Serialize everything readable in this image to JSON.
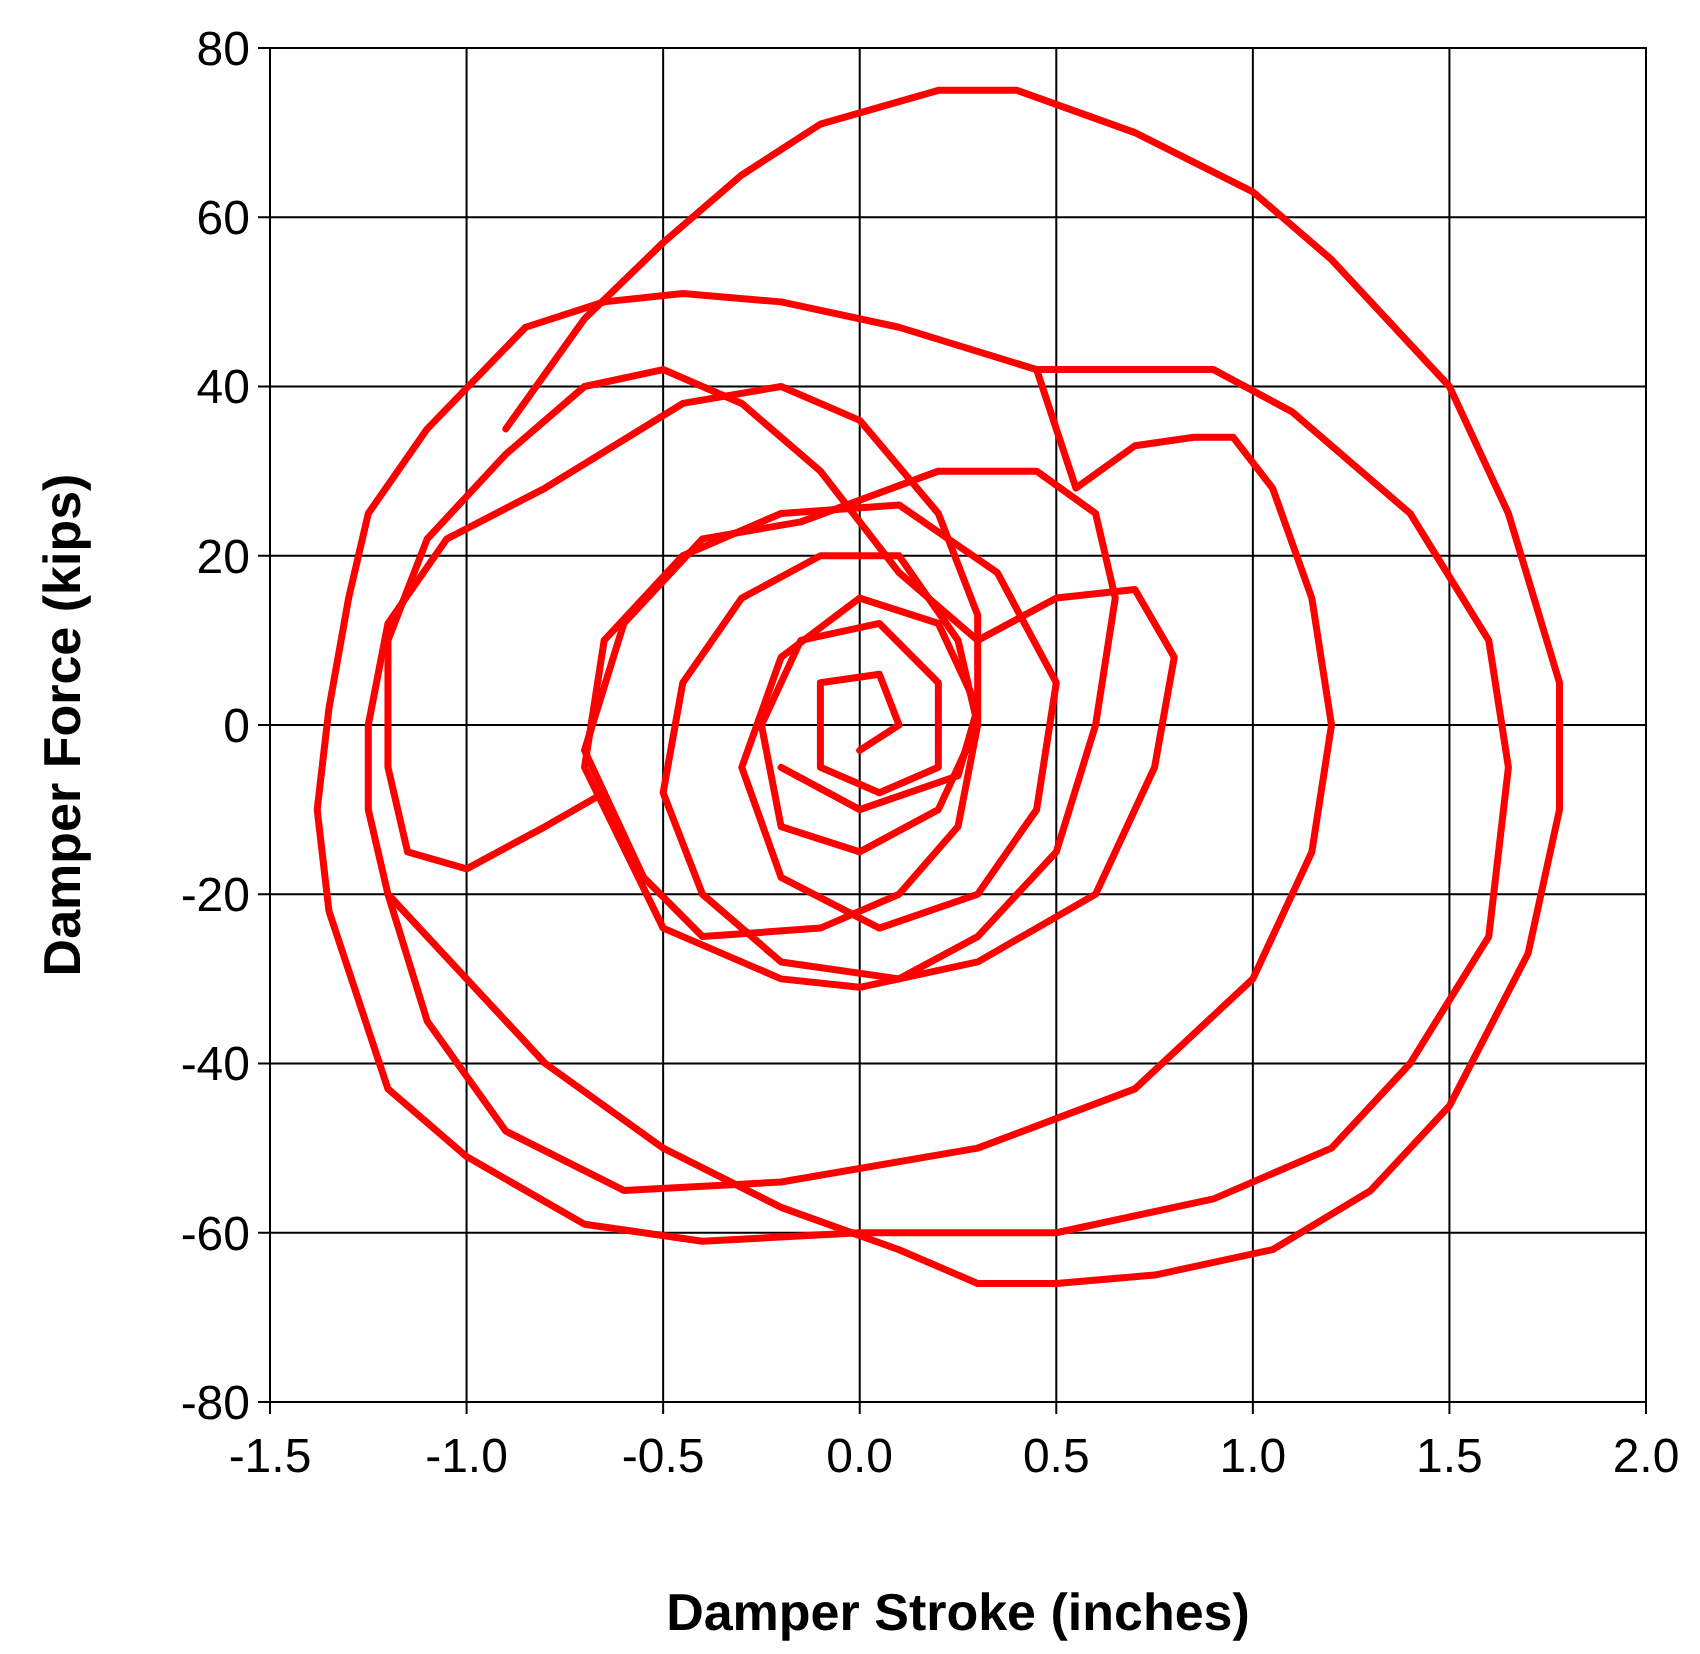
{
  "chart_data": {
    "type": "line",
    "xlabel": "Damper Stroke (inches)",
    "ylabel": "Damper Force (kips)",
    "xlim": [
      -1.5,
      2.0
    ],
    "xticks": [
      {
        "value": -1.5,
        "label": "-1.5"
      },
      {
        "value": -1,
        "label": "-1.0"
      },
      {
        "value": -0.5,
        "label": "-0.5"
      },
      {
        "value": 0,
        "label": "0.0"
      },
      {
        "value": 0.5,
        "label": "0.5"
      },
      {
        "value": 1,
        "label": "1.0"
      },
      {
        "value": 1.5,
        "label": "1.5"
      },
      {
        "value": 2,
        "label": "2.0"
      }
    ],
    "ylim": [
      -80,
      80
    ],
    "yticks": [
      -80,
      -60,
      -40,
      -20,
      0,
      20,
      40,
      60,
      80
    ],
    "grid": true,
    "marker": "none",
    "line_style": "solid",
    "series": [
      {
        "color": "#ff0000",
        "x": [
          -0.9,
          -0.7,
          -0.5,
          -0.3,
          -0.1,
          0.2,
          0.4,
          0.7,
          1.0,
          1.2,
          1.5,
          1.65,
          1.78,
          1.78,
          1.7,
          1.5,
          1.3,
          1.05,
          0.75,
          0.5,
          0.3,
          0.1,
          -0.2,
          -0.5,
          -0.8,
          -1.0,
          -1.2,
          -1.25,
          -1.25,
          -1.2,
          -1.05,
          -0.8,
          -0.45,
          -0.2,
          0.0,
          0.2,
          0.3,
          0.3,
          0.25,
          0.1,
          -0.1,
          -0.4,
          -0.55,
          -0.7,
          -0.6,
          -0.4,
          -0.15,
          0.2,
          0.45,
          0.6,
          0.65,
          0.6,
          0.5,
          0.3,
          0.1,
          -0.2,
          -0.4,
          -0.5,
          -0.45,
          -0.3,
          -0.1,
          0.1,
          0.25,
          0.3,
          0.2,
          0.0,
          -0.2,
          -0.25,
          -0.15,
          0.05,
          0.2,
          0.2,
          0.05,
          -0.1,
          -0.1,
          0.05,
          0.1,
          0.0
        ],
        "values": [
          35,
          48,
          57,
          65,
          71,
          75,
          75,
          70,
          63,
          55,
          40,
          25,
          5,
          -10,
          -27,
          -45,
          -55,
          -62,
          -65,
          -66,
          -66,
          -62,
          -57,
          -50,
          -40,
          -30,
          -20,
          -10,
          0,
          12,
          22,
          28,
          38,
          40,
          36,
          25,
          13,
          0,
          -12,
          -20,
          -24,
          -25,
          -18,
          -3,
          12,
          22,
          24,
          30,
          30,
          25,
          15,
          0,
          -15,
          -25,
          -30,
          -28,
          -20,
          -8,
          5,
          15,
          20,
          20,
          10,
          0,
          -10,
          -15,
          -12,
          0,
          10,
          12,
          5,
          -5,
          -8,
          -5,
          5,
          6,
          0,
          -3
        ]
      },
      {
        "color": "#ff0000",
        "x": [
          -0.65,
          -0.8,
          -1.0,
          -1.15,
          -1.2,
          -1.2,
          -1.1,
          -0.9,
          -0.7,
          -0.5,
          -0.3,
          -0.1,
          0.1,
          0.3,
          0.5,
          0.7,
          0.8,
          0.75,
          0.6,
          0.3,
          0.0,
          -0.2,
          -0.5,
          -0.7,
          -0.65,
          -0.45,
          -0.2,
          0.1,
          0.35,
          0.5,
          0.45,
          0.3,
          0.05,
          -0.2,
          -0.3,
          -0.2,
          0.0,
          0.2,
          0.3,
          0.25,
          0.0,
          -0.2
        ],
        "values": [
          -8,
          -12,
          -17,
          -15,
          -5,
          10,
          22,
          32,
          40,
          42,
          38,
          30,
          18,
          10,
          15,
          16,
          8,
          -5,
          -20,
          -28,
          -31,
          -30,
          -24,
          -5,
          10,
          20,
          25,
          26,
          18,
          5,
          -10,
          -20,
          -24,
          -18,
          -5,
          8,
          15,
          12,
          2,
          -6,
          -10,
          -5
        ]
      },
      {
        "color": "#ff0000",
        "x": [
          0.45,
          0.9,
          1.1,
          1.4,
          1.6,
          1.65,
          1.6,
          1.4,
          1.2,
          0.9,
          0.5,
          0.0,
          -0.4,
          -0.7,
          -1.0,
          -1.2,
          -1.35,
          -1.38,
          -1.35,
          -1.3,
          -1.25,
          -1.1,
          -0.85,
          -0.65,
          -0.45,
          -0.2,
          0.1,
          0.45,
          0.55,
          0.7,
          0.85,
          0.95,
          1.05,
          1.15,
          1.2,
          1.15,
          1.0,
          0.7,
          0.3,
          -0.2,
          -0.6,
          -0.9,
          -1.1,
          -1.2
        ],
        "values": [
          42,
          42,
          37,
          25,
          10,
          -5,
          -25,
          -40,
          -50,
          -56,
          -60,
          -60,
          -61,
          -59,
          -51,
          -43,
          -22,
          -10,
          2,
          15,
          25,
          35,
          47,
          50,
          51,
          50,
          47,
          42,
          28,
          33,
          34,
          34,
          28,
          15,
          0,
          -15,
          -30,
          -43,
          -50,
          -54,
          -55,
          -48,
          -35,
          -20
        ]
      }
    ]
  }
}
